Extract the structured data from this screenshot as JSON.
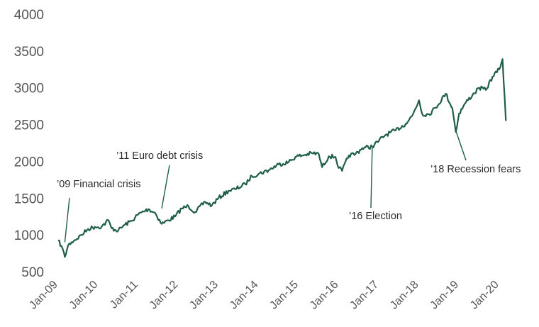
{
  "chart_data": {
    "type": "line",
    "title": "",
    "xlabel": "",
    "ylabel": "",
    "ylim": [
      500,
      4000
    ],
    "yticks": [
      500,
      1000,
      1500,
      2000,
      2500,
      3000,
      3500,
      4000
    ],
    "xlim": [
      "2009-01",
      "2020-04"
    ],
    "xticks": [
      "Jan-09",
      "Jan-10",
      "Jan-11",
      "Jan-12",
      "Jan-13",
      "Jan-14",
      "Jan-15",
      "Jan-16",
      "Jan-17",
      "Jan-18",
      "Jan-19",
      "Jan-20"
    ],
    "grid": false,
    "line_color": "#1f5e47",
    "series": [
      {
        "x": [
          "2009-01",
          "2009-02",
          "2009-03",
          "2009-04",
          "2009-05",
          "2009-06",
          "2009-08",
          "2009-10",
          "2009-12",
          "2010-02",
          "2010-04",
          "2010-05",
          "2010-07",
          "2010-09",
          "2010-11",
          "2011-01",
          "2011-04",
          "2011-06",
          "2011-08",
          "2011-10",
          "2011-12",
          "2012-02",
          "2012-04",
          "2012-06",
          "2012-09",
          "2012-11",
          "2013-01",
          "2013-04",
          "2013-06",
          "2013-09",
          "2013-11",
          "2014-01",
          "2014-04",
          "2014-07",
          "2014-10",
          "2014-12",
          "2015-03",
          "2015-05",
          "2015-07",
          "2015-08",
          "2015-10",
          "2015-12",
          "2016-01",
          "2016-02",
          "2016-04",
          "2016-06",
          "2016-08",
          "2016-11",
          "2017-01",
          "2017-03",
          "2017-06",
          "2017-09",
          "2017-11",
          "2018-01",
          "2018-02",
          "2018-04",
          "2018-06",
          "2018-09",
          "2018-11",
          "2018-12",
          "2019-01",
          "2019-03",
          "2019-05",
          "2019-07",
          "2019-09",
          "2019-11",
          "2020-01",
          "2020-02",
          "2020-03"
        ],
        "values": [
          920,
          850,
          700,
          860,
          900,
          930,
          1000,
          1080,
          1110,
          1110,
          1200,
          1090,
          1060,
          1140,
          1190,
          1280,
          1350,
          1300,
          1150,
          1200,
          1250,
          1360,
          1390,
          1310,
          1450,
          1400,
          1500,
          1600,
          1620,
          1690,
          1800,
          1830,
          1880,
          1960,
          1990,
          2060,
          2090,
          2110,
          2100,
          1920,
          2070,
          2060,
          1910,
          1870,
          2080,
          2100,
          2180,
          2200,
          2280,
          2360,
          2420,
          2510,
          2620,
          2830,
          2640,
          2640,
          2730,
          2920,
          2720,
          2400,
          2650,
          2800,
          2900,
          3000,
          2970,
          3150,
          3250,
          3390,
          2550
        ]
      }
    ],
    "annotations": [
      {
        "text": "’09 Financial crisis",
        "date": "2009-03",
        "value": 900
      },
      {
        "text": "’11 Euro debt crisis",
        "date": "2011-08",
        "value": 1360
      },
      {
        "text": "’16 Election",
        "date": "2016-11",
        "value": 2180
      },
      {
        "text": "’18 Recession fears",
        "date": "2018-12",
        "value": 2420
      }
    ]
  }
}
